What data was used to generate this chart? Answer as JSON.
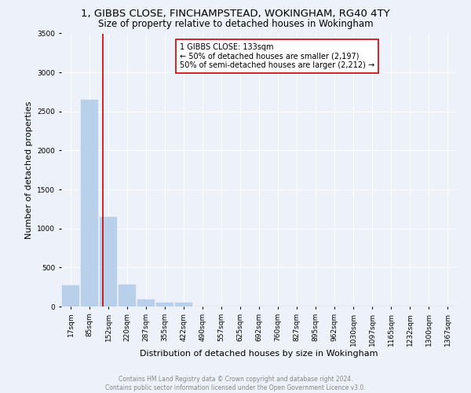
{
  "title1": "1, GIBBS CLOSE, FINCHAMPSTEAD, WOKINGHAM, RG40 4TY",
  "title2": "Size of property relative to detached houses in Wokingham",
  "xlabel": "Distribution of detached houses by size in Wokingham",
  "ylabel": "Number of detached properties",
  "footer1": "Contains HM Land Registry data © Crown copyright and database right 2024.",
  "footer2": "Contains public sector information licensed under the Open Government Licence v3.0.",
  "bar_labels": [
    "17sqm",
    "85sqm",
    "152sqm",
    "220sqm",
    "287sqm",
    "355sqm",
    "422sqm",
    "490sqm",
    "557sqm",
    "625sqm",
    "692sqm",
    "760sqm",
    "827sqm",
    "895sqm",
    "962sqm",
    "1030sqm",
    "1097sqm",
    "1165sqm",
    "1232sqm",
    "1300sqm",
    "1367sqm"
  ],
  "bar_values": [
    270,
    2650,
    1150,
    280,
    90,
    50,
    50,
    0,
    0,
    0,
    0,
    0,
    0,
    0,
    0,
    0,
    0,
    0,
    0,
    0,
    0
  ],
  "bar_color": "#b8d0ea",
  "bar_edge_color": "#b8d0ea",
  "vline_color": "#cc0000",
  "annotation_line1": "1 GIBBS CLOSE: 133sqm",
  "annotation_line2": "← 50% of detached houses are smaller (2,197)",
  "annotation_line3": "50% of semi-detached houses are larger (2,212) →",
  "annotation_box_facecolor": "#ffffff",
  "annotation_box_edgecolor": "#cc0000",
  "ylim": [
    0,
    3500
  ],
  "yticks": [
    0,
    500,
    1000,
    1500,
    2000,
    2500,
    3000,
    3500
  ],
  "background_color": "#edf2fa",
  "grid_color": "#ffffff",
  "title1_fontsize": 9.5,
  "title2_fontsize": 8.5,
  "ylabel_fontsize": 8,
  "xlabel_fontsize": 8,
  "tick_fontsize": 6.5,
  "annotation_fontsize": 7,
  "footer_fontsize": 5.5,
  "footer_color": "#888888"
}
